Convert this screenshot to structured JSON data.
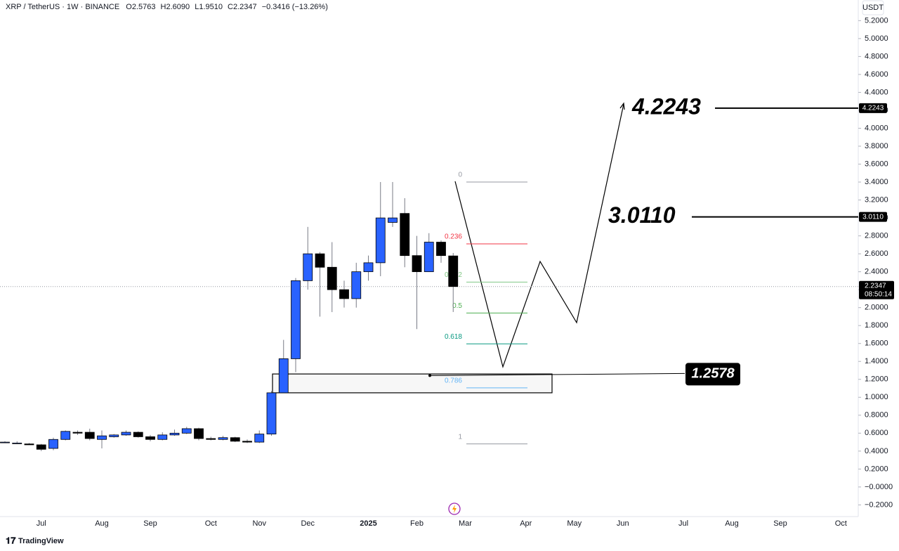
{
  "chart_data": {
    "type": "candlestick",
    "symbol": "XRP / TetherUS",
    "interval": "1W",
    "exchange": "BINANCE",
    "legend_values": [
      "O2.5763",
      "H2.6090",
      "L1.9510",
      "C2.2347",
      "−0.3416 (−13.26%)"
    ],
    "currency": "USDT",
    "countdown": "08:50:14",
    "brand": "TradingView",
    "categories": [
      null,
      null,
      null,
      null,
      null,
      null,
      null,
      null,
      null,
      null,
      null,
      null,
      null,
      null,
      null,
      null,
      null,
      null,
      null,
      null,
      null,
      null,
      null,
      null,
      null,
      null,
      null,
      null,
      null,
      null,
      null,
      null,
      null,
      null,
      null,
      null,
      null,
      null
    ],
    "open": [
      0.5,
      0.49,
      0.48,
      0.47,
      0.43,
      0.53,
      0.61,
      0.61,
      0.53,
      0.56,
      0.58,
      0.61,
      0.56,
      0.53,
      0.58,
      0.6,
      0.65,
      0.54,
      0.53,
      0.55,
      0.51,
      0.5,
      0.59,
      1.05,
      1.43,
      2.3,
      2.6,
      2.45,
      2.2,
      2.1,
      2.4,
      2.5,
      2.95,
      3.05,
      2.58,
      2.4,
      2.73,
      2.5763
    ],
    "high": [
      0.51,
      0.51,
      0.49,
      0.48,
      0.55,
      0.63,
      0.63,
      0.65,
      0.63,
      0.59,
      0.63,
      0.62,
      0.58,
      0.61,
      0.64,
      0.67,
      0.66,
      0.56,
      0.57,
      0.56,
      0.53,
      0.63,
      1.07,
      1.64,
      2.33,
      2.9,
      2.62,
      2.73,
      2.3,
      2.5,
      2.58,
      3.4,
      3.4,
      3.22,
      2.8,
      2.83,
      2.75,
      2.609
    ],
    "low": [
      0.49,
      0.48,
      0.47,
      0.4,
      0.41,
      0.52,
      0.58,
      0.52,
      0.43,
      0.55,
      0.57,
      0.55,
      0.51,
      0.52,
      0.57,
      0.59,
      0.52,
      0.52,
      0.52,
      0.5,
      0.49,
      0.49,
      0.57,
      1.05,
      1.28,
      2.2,
      1.9,
      1.95,
      2.0,
      2.0,
      2.3,
      2.35,
      2.9,
      2.45,
      1.76,
      2.4,
      2.5,
      1.951
    ],
    "close": [
      0.5,
      0.49,
      0.47,
      0.42,
      0.53,
      0.62,
      0.6,
      0.54,
      0.57,
      0.58,
      0.61,
      0.56,
      0.53,
      0.58,
      0.6,
      0.65,
      0.54,
      0.53,
      0.55,
      0.51,
      0.5,
      0.59,
      1.05,
      1.43,
      2.3,
      2.6,
      2.45,
      2.2,
      2.1,
      2.4,
      2.5,
      3.0,
      3.0,
      2.58,
      2.4,
      2.73,
      2.58,
      2.2347
    ],
    "up_color": "#2962ff",
    "down_color": "#000000",
    "wick_color": "#787b86",
    "ylim": [
      -0.33,
      5.43
    ],
    "yticks": [
      {
        "value": 5.2,
        "label": "5.2000"
      },
      {
        "value": 5.0,
        "label": "5.0000"
      },
      {
        "value": 4.8,
        "label": "4.8000"
      },
      {
        "value": 4.6,
        "label": "4.6000"
      },
      {
        "value": 4.4,
        "label": "4.4000"
      },
      {
        "value": 4.2,
        "label": "4.2000"
      },
      {
        "value": 4.0,
        "label": "4.0000"
      },
      {
        "value": 3.8,
        "label": "3.8000"
      },
      {
        "value": 3.6,
        "label": "3.6000"
      },
      {
        "value": 3.4,
        "label": "3.4000"
      },
      {
        "value": 3.2,
        "label": "3.2000"
      },
      {
        "value": 3.0,
        "label": "3.0000"
      },
      {
        "value": 2.8,
        "label": "2.8000"
      },
      {
        "value": 2.6,
        "label": "2.6000"
      },
      {
        "value": 2.4,
        "label": "2.4000"
      },
      {
        "value": 2.2,
        "label": "2.2000"
      },
      {
        "value": 2.0,
        "label": "2.0000"
      },
      {
        "value": 1.8,
        "label": "1.8000"
      },
      {
        "value": 1.6,
        "label": "1.6000"
      },
      {
        "value": 1.4,
        "label": "1.4000"
      },
      {
        "value": 1.2,
        "label": "1.2000"
      },
      {
        "value": 1.0,
        "label": "1.0000"
      },
      {
        "value": 0.8,
        "label": "0.8000"
      },
      {
        "value": 0.6,
        "label": "0.6000"
      },
      {
        "value": 0.4,
        "label": "0.4000"
      },
      {
        "value": 0.2,
        "label": "0.2000"
      },
      {
        "value": 0,
        "label": "−0.0000"
      },
      {
        "value": -0.2,
        "label": "−0.2000"
      }
    ],
    "xticks": [
      {
        "value": 3,
        "label": "Jul"
      },
      {
        "value": 8,
        "label": "Aug"
      },
      {
        "value": 12,
        "label": "Sep"
      },
      {
        "value": 17,
        "label": "Oct"
      },
      {
        "value": 21,
        "label": "Nov"
      },
      {
        "value": 25,
        "label": "Dec"
      },
      {
        "value": 30,
        "label": "2025"
      },
      {
        "value": 34,
        "label": "Feb"
      },
      {
        "value": 38,
        "label": "Mar"
      },
      {
        "value": 43,
        "label": "Apr"
      },
      {
        "value": 47,
        "label": "May"
      },
      {
        "value": 51,
        "label": "Jun"
      },
      {
        "value": 56,
        "label": "Jul"
      },
      {
        "value": 60,
        "label": "Aug"
      },
      {
        "value": 64,
        "label": "Sep"
      },
      {
        "value": 69,
        "label": "Oct"
      }
    ],
    "fib": {
      "high": 3.4,
      "low": 0.48,
      "levels": [
        0,
        0.236,
        0.382,
        0.5,
        0.618,
        0.786,
        1
      ],
      "colors": [
        "#9598a1",
        "#f23645",
        "#81c784",
        "#4caf50",
        "#089981",
        "#64b5f6",
        "#9598a1"
      ]
    },
    "zone": [
      1.05,
      1.26
    ],
    "targets": {
      "values": [
        4.2243,
        3.011,
        1.2578
      ],
      "value_labels": [
        "4.2243",
        "3.0110",
        "1.2578"
      ]
    }
  }
}
